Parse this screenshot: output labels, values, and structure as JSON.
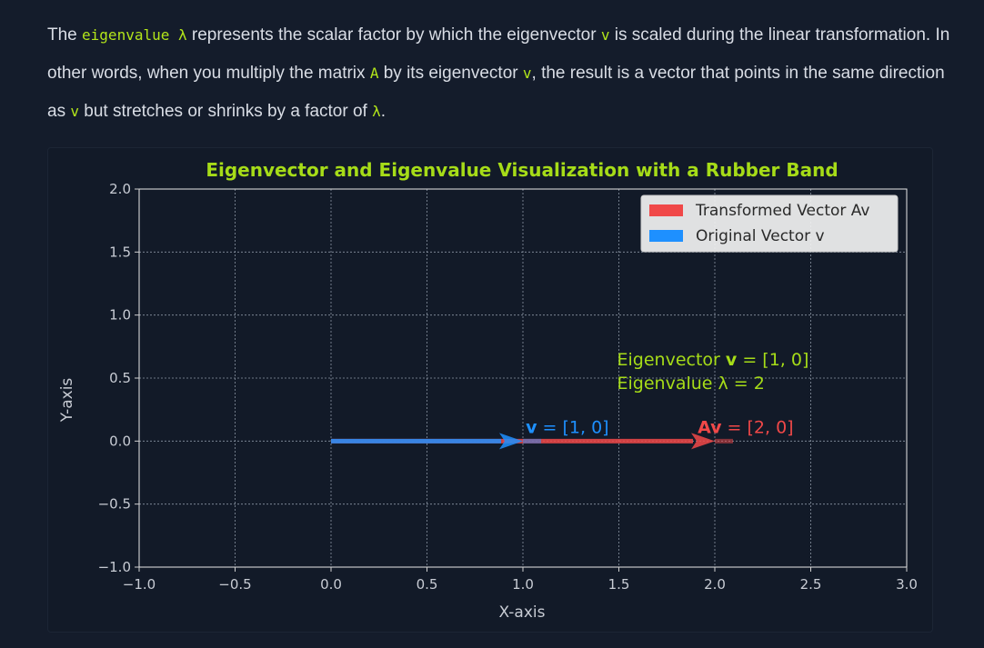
{
  "paragraph": {
    "s1": "The ",
    "c1": "eigenvalue λ",
    "s2": " represents the scalar factor by which the eigenvector ",
    "c2": "v",
    "s3": " is scaled during the linear transformation. In other words, when you multiply the matrix ",
    "c3": "A",
    "s4": " by its eigenvector ",
    "c4": "v",
    "s5": ", the result is a vector that points in the same direction as ",
    "c5": "v",
    "s6": " but stretches or shrinks by a factor of ",
    "c6": "λ",
    "s7": "."
  },
  "colors": {
    "accent": "#a6dc18",
    "original": "#1e90ff",
    "transformed": "#f04848"
  },
  "chart_data": {
    "type": "vector-plot",
    "title": "Eigenvector and Eigenvalue Visualization with a Rubber Band",
    "xlabel": "X-axis",
    "ylabel": "Y-axis",
    "xlim": [
      -1.0,
      3.0
    ],
    "ylim": [
      -1.0,
      2.0
    ],
    "xticks": [
      -1.0,
      -0.5,
      0.0,
      0.5,
      1.0,
      1.5,
      2.0,
      2.5,
      3.0
    ],
    "yticks": [
      -1.0,
      -0.5,
      0.0,
      0.5,
      1.0,
      1.5,
      2.0
    ],
    "xtick_labels": [
      "−1.0",
      "−0.5",
      "0.0",
      "0.5",
      "1.0",
      "1.5",
      "2.0",
      "2.5",
      "3.0"
    ],
    "ytick_labels": [
      "−1.0",
      "−0.5",
      "0.0",
      "0.5",
      "1.0",
      "1.5",
      "2.0"
    ],
    "grid": true,
    "legend_position": "top-right",
    "vectors": [
      {
        "name": "Transformed Vector Av",
        "origin": [
          0,
          0
        ],
        "components": [
          2,
          0
        ],
        "color": "#f04848"
      },
      {
        "name": "Original Vector v",
        "origin": [
          0,
          0
        ],
        "components": [
          1,
          0
        ],
        "color": "#1e90ff"
      }
    ],
    "annotations": [
      {
        "bold": "v",
        "rest": " = [1, 0]",
        "pos": [
          1.1,
          0.05
        ],
        "color": "#1e90ff"
      },
      {
        "bold": "Av",
        "rest": " = [2, 0]",
        "pos": [
          2.1,
          0.05
        ],
        "color": "#f04848"
      },
      {
        "lines": [
          "Eigenvector ",
          "Eigenvalue λ = 2"
        ],
        "bold_v_line": "v = [1, 0]",
        "pos": [
          1.5,
          0.5
        ],
        "color": "#a6dc18"
      }
    ]
  }
}
